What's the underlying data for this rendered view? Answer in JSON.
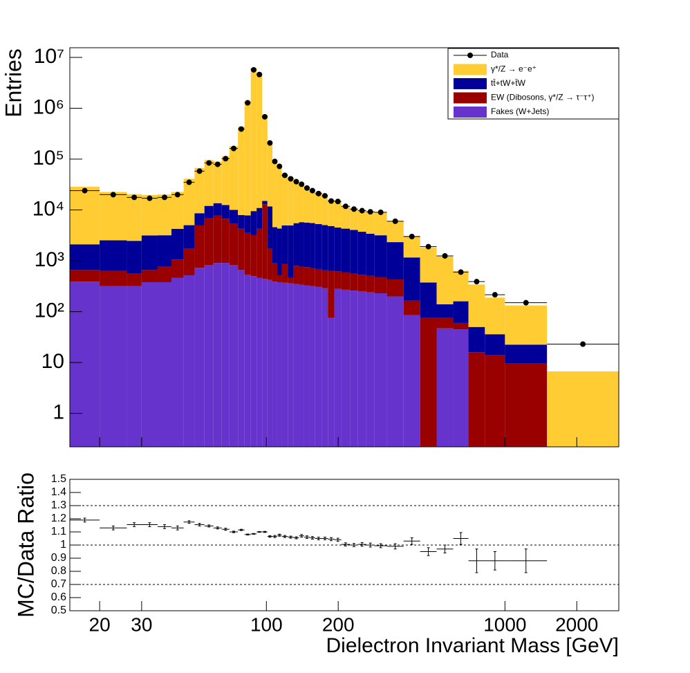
{
  "chart_data": {
    "type": "stacked_histogram",
    "xlabel": "Dielectron Invariant Mass [GeV]",
    "ylabel": "Entries",
    "log_x": true,
    "log_y": true,
    "xlim": [
      15,
      3000
    ],
    "xticks": [
      20,
      30,
      100,
      200,
      1000,
      2000
    ],
    "ylim": [
      0.22,
      15500000
    ],
    "yticks": [
      1,
      10,
      {
        "value": 100,
        "label": "10²"
      },
      {
        "value": 1000,
        "label": "10³"
      },
      {
        "value": 10000,
        "label": "10⁴"
      },
      {
        "value": 100000,
        "label": "10⁵"
      },
      {
        "value": 1000000,
        "label": "10⁶"
      },
      {
        "value": 10000000,
        "label": "10⁷"
      }
    ],
    "bins": [
      15,
      20,
      26,
      30,
      35,
      40,
      45,
      50,
      55,
      60,
      65,
      70,
      76,
      81,
      86,
      91,
      96,
      101,
      106,
      111,
      116,
      123,
      130,
      137,
      144,
      152,
      160,
      171,
      181,
      193,
      206,
      224,
      242,
      262,
      284,
      320,
      376,
      441,
      517,
      607,
      703,
      824,
      1000,
      1500,
      3000
    ],
    "data": {
      "name": "Data",
      "color": "#000000",
      "values": [
        24000,
        20000,
        17700,
        17000,
        17700,
        20000,
        35000,
        58000,
        84000,
        79000,
        102000,
        162000,
        390000,
        1280000,
        5700000,
        4600000,
        680000,
        208000,
        90000,
        72000,
        48000,
        41000,
        36000,
        32000,
        27000,
        24000,
        21000,
        19000,
        15000,
        14700,
        11800,
        10400,
        9700,
        9200,
        9000,
        6000,
        3000,
        1900,
        1250,
        600,
        390,
        215,
        150,
        23
      ]
    },
    "series": [
      {
        "name": "γ*/Z → e⁻e⁺",
        "color": "#ffcc33",
        "values": [
          26450,
          20070,
          17970,
          16480,
          17000,
          18340,
          36080,
          58370,
          84170,
          75690,
          101690,
          168170,
          426940,
          1374570,
          6175000,
          5049040,
          732960,
          209780,
          91260,
          73080,
          46150,
          38500,
          32480,
          28480,
          22970,
          19800,
          16760,
          14900,
          10845,
          10770,
          7570,
          6340,
          6020,
          5790,
          5775,
          3610,
          1925,
          1430,
          1070,
          470,
          293,
          153,
          110,
          6.7
        ]
      },
      {
        "name": "tt̄+tW+t̄W",
        "color": "#000099",
        "values": [
          1450,
          1900,
          1900,
          2500,
          2400,
          3200,
          3300,
          3600,
          5200,
          5800,
          5800,
          4600,
          3700,
          4300,
          6300,
          6700,
          2100,
          10000,
          3700,
          3800,
          4100,
          4500,
          4700,
          5000,
          4900,
          4800,
          4600,
          4400,
          4200,
          3900,
          3700,
          3500,
          3200,
          2900,
          2700,
          1900,
          1000,
          300,
          65,
          100,
          34,
          22,
          13,
          0
        ]
      },
      {
        "name": "EW (Dibosons, γ*/Z → τ⁻τ⁺)",
        "color": "#990000",
        "values": [
          270,
          310,
          250,
          280,
          400,
          600,
          1200,
          4300,
          6000,
          6900,
          5800,
          4600,
          3600,
          3000,
          2700,
          3800,
          12500,
          1300,
          500,
          140,
          500,
          100,
          450,
          420,
          420,
          400,
          380,
          360,
          560,
          340,
          320,
          300,
          280,
          270,
          250,
          230,
          80,
          75,
          28,
          15,
          16,
          14,
          9.5,
          0
        ]
      },
      {
        "name": "Fakes (W+Jets)",
        "color": "#6633cc",
        "values": [
          390,
          320,
          320,
          380,
          380,
          460,
          520,
          730,
          830,
          910,
          910,
          830,
          660,
          530,
          500,
          460,
          440,
          420,
          390,
          380,
          370,
          360,
          350,
          340,
          330,
          320,
          310,
          290,
          75,
          280,
          270,
          260,
          250,
          240,
          230,
          200,
          85,
          0,
          47,
          45,
          0,
          0,
          0,
          0
        ]
      }
    ],
    "ratio": {
      "ylabel": "MC/Data Ratio",
      "ylim": [
        0.5,
        1.5
      ],
      "yticks": [
        0.5,
        0.6,
        0.7,
        0.8,
        0.9,
        1,
        1.1,
        1.2,
        1.3,
        1.4,
        1.5
      ],
      "reference_lines": [
        0.7,
        1,
        1.3
      ],
      "values": [
        1.19,
        1.13,
        1.155,
        1.155,
        1.14,
        1.13,
        1.175,
        1.155,
        1.145,
        1.13,
        1.12,
        1.1,
        1.115,
        1.08,
        1.085,
        1.1,
        1.1,
        1.065,
        1.065,
        1.075,
        1.065,
        1.06,
        1.055,
        1.07,
        1.06,
        1.055,
        1.05,
        1.05,
        1.045,
        1.04,
        1.005,
        1.0,
        1.005,
        1.0,
        0.995,
        0.99,
        1.03,
        0.95,
        0.97,
        1.05,
        0.88,
        0.88,
        0.88,
        null
      ],
      "errors": [
        0.015,
        0.015,
        0.015,
        0.015,
        0.015,
        0.015,
        0.01,
        0.01,
        0.008,
        0.008,
        0.008,
        0.006,
        0.005,
        0.004,
        0.003,
        0.003,
        0.004,
        0.006,
        0.008,
        0.008,
        0.008,
        0.008,
        0.008,
        0.01,
        0.01,
        0.01,
        0.01,
        0.01,
        0.012,
        0.012,
        0.012,
        0.012,
        0.014,
        0.015,
        0.015,
        0.02,
        0.025,
        0.03,
        0.03,
        0.045,
        0.09,
        0.07,
        0.09,
        null
      ]
    }
  }
}
